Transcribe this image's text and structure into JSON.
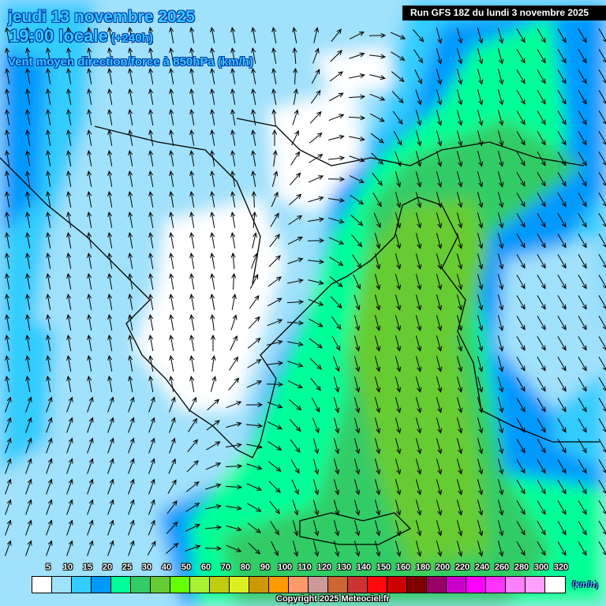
{
  "header": {
    "date": "jeudi 13 novembre 2025",
    "time": "19:00 locale",
    "lead": "(+240h)",
    "parameter": "Vent moyen direction/force à 850hPa (km/h)",
    "run": "Run GFS 18Z du lundi 3 novembre 2025"
  },
  "legend": {
    "unit": "(km/h)",
    "labels": [
      "5",
      "10",
      "15",
      "20",
      "25",
      "30",
      "40",
      "50",
      "60",
      "70",
      "80",
      "90",
      "100",
      "110",
      "120",
      "130",
      "140",
      "150",
      "160",
      "180",
      "200",
      "220",
      "240",
      "260",
      "280",
      "300",
      "320"
    ],
    "colors": [
      "#ffffff",
      "#a0e1fb",
      "#33ccff",
      "#0099ff",
      "#00ff99",
      "#33cc66",
      "#66cc33",
      "#66ff00",
      "#a8f030",
      "#c0cc10",
      "#dcf020",
      "#cc9900",
      "#ff9900",
      "#ff9966",
      "#cc9999",
      "#cc6633",
      "#cc3333",
      "#ff0a0a",
      "#cc0000",
      "#800000",
      "#990066",
      "#cc00cc",
      "#ff00ff",
      "#ff33ff",
      "#ff80ff",
      "#ffa0ff",
      "#ffffff"
    ]
  },
  "copyright": "Copyright 2025 Meteociel.fr"
}
